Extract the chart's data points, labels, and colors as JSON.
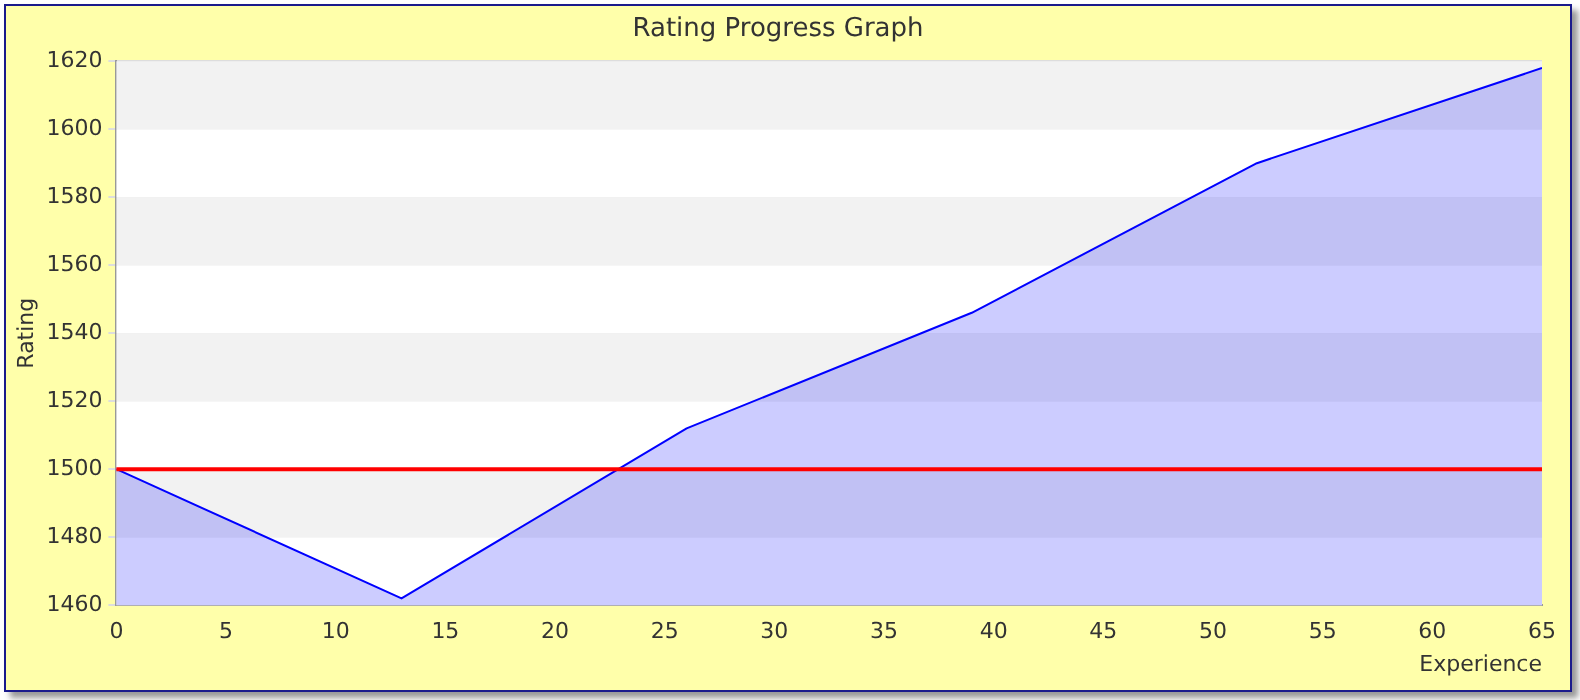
{
  "chart_data": {
    "type": "area",
    "title": "Rating Progress Graph",
    "xlabel": "Experience",
    "ylabel": "Rating",
    "x": [
      0,
      13,
      26,
      39,
      52,
      65
    ],
    "series": [
      {
        "color": "#0000ff",
        "values": [
          1500,
          1462,
          1512,
          1546,
          1590,
          1618
        ]
      }
    ],
    "xlim": [
      0,
      65
    ],
    "xticks": [
      0,
      5,
      10,
      15,
      20,
      25,
      30,
      35,
      40,
      45,
      50,
      55,
      60,
      65
    ],
    "ylim": [
      1460,
      1620
    ],
    "yticks": [
      1460,
      1480,
      1500,
      1520,
      1540,
      1560,
      1580,
      1600,
      1620
    ],
    "ref_lines": [
      {
        "axis": "y",
        "value": 1500,
        "color": "#ff0000"
      }
    ],
    "grid": "y",
    "marker": "none"
  }
}
